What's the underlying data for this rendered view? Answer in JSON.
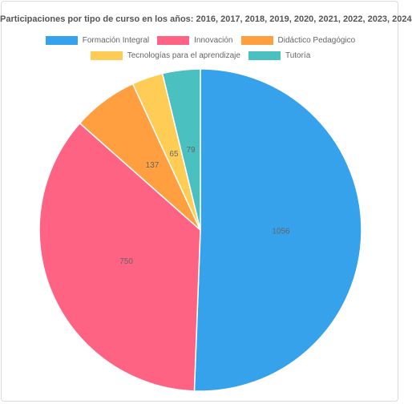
{
  "chart_data": {
    "type": "pie",
    "title": "Participaciones por tipo de curso en los años: 2016, 2017, 2018, 2019, 2020, 2021, 2022, 2023, 2024",
    "legend_position": "top",
    "slices": [
      {
        "label": "Formación Integral",
        "value": 1056,
        "color": "#36A2EB"
      },
      {
        "label": "Innovación",
        "value": 750,
        "color": "#FF6384"
      },
      {
        "label": "Didáctico Pedagógico",
        "value": 137,
        "color": "#FF9F40"
      },
      {
        "label": "Tecnologías para el aprendizaje",
        "value": 65,
        "color": "#FFCD56"
      },
      {
        "label": "Tutoría",
        "value": 79,
        "color": "#4BC0C0"
      }
    ]
  }
}
